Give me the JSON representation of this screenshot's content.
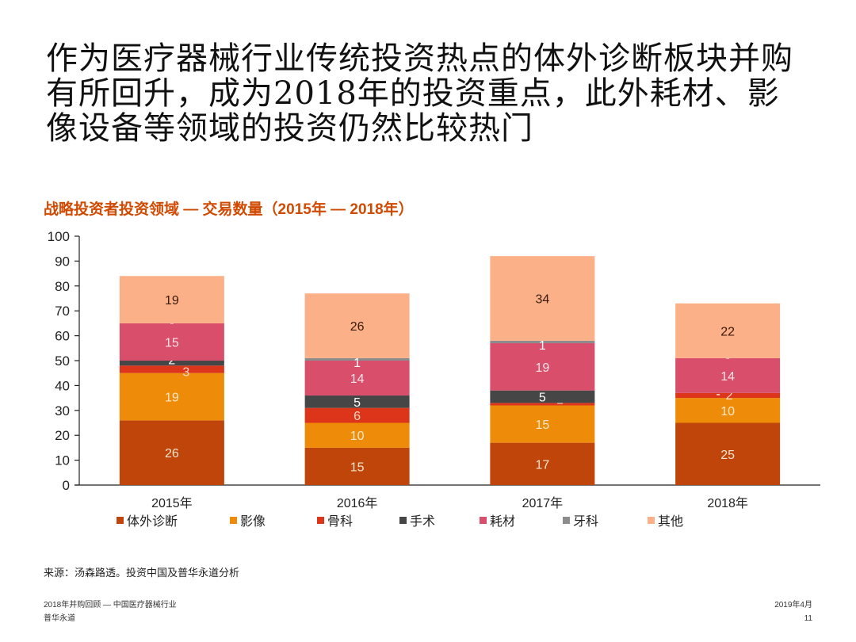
{
  "slide": {
    "title_lines": [
      "作为医疗器械行业传统投资热点的体外诊断板块并购",
      "有所回升，成为2018年的投资重点，此外耗材、影",
      "像设备等领域的投资仍然比较热门"
    ],
    "source": "来源：汤森路透。投资中国及普华永道分析",
    "footer_left": [
      "2018年并购回顾 — 中国医疗器械行业",
      "普华永道"
    ],
    "footer_right": [
      "2019年4月",
      "11"
    ]
  },
  "chart_data": {
    "type": "bar",
    "stacked": true,
    "title": "战略投资者投资领域 — 交易数量（2015年 — 2018年）",
    "title_color": "#d04a02",
    "xlabel": "",
    "ylabel": "",
    "ylim": [
      0,
      100
    ],
    "yticks": [
      0,
      10,
      20,
      30,
      40,
      50,
      60,
      70,
      80,
      90,
      100
    ],
    "grid": false,
    "legend_position": "bottom",
    "categories": [
      "2015年",
      "2016年",
      "2017年",
      "2018年"
    ],
    "series": [
      {
        "name": "体外诊断",
        "color": "#c0450a",
        "label_color": "#f5e6d0",
        "values": [
          26,
          15,
          17,
          25
        ],
        "labels": [
          "26",
          "15",
          "17",
          "25"
        ]
      },
      {
        "name": "影像",
        "color": "#ee8c0a",
        "label_color": "#fbe9c8",
        "values": [
          19,
          10,
          15,
          10
        ],
        "labels": [
          "19",
          "10",
          "15",
          "10"
        ]
      },
      {
        "name": "骨科",
        "color": "#dc3519",
        "label_color": "#fbd9c4",
        "values": [
          3,
          6,
          1,
          2
        ],
        "labels": [
          "3",
          "6",
          "1",
          "2"
        ]
      },
      {
        "name": "手术",
        "color": "#464646",
        "label_color": "#ffffff",
        "values": [
          2,
          5,
          5,
          0
        ],
        "labels": [
          "2",
          "5",
          "5",
          "-"
        ]
      },
      {
        "name": "耗材",
        "color": "#d84e6b",
        "label_color": "#fbe4e8",
        "values": [
          15,
          14,
          19,
          14
        ],
        "labels": [
          "15",
          "14",
          "19",
          "14"
        ]
      },
      {
        "name": "牙科",
        "color": "#8c8c8c",
        "label_color": "#ffffff",
        "values": [
          0,
          1,
          1,
          0
        ],
        "labels": [
          "-",
          "1",
          "1",
          "-"
        ]
      },
      {
        "name": "其他",
        "color": "#fbb088",
        "label_color": "#3a1a0a",
        "values": [
          19,
          26,
          34,
          22
        ],
        "labels": [
          "19",
          "26",
          "34",
          "22"
        ]
      }
    ]
  }
}
